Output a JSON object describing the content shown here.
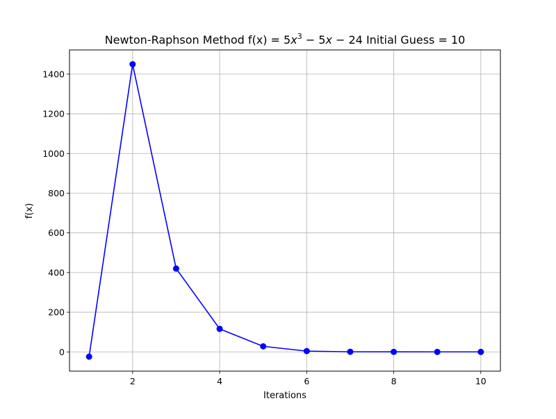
{
  "chart_data": {
    "type": "line",
    "title": "Newton-Raphson Method f(x) = 5x³ − 5x − 24 Initial Guess = 10",
    "title_parts": {
      "prefix": "Newton-Raphson Method f(x) = 5",
      "var": "x",
      "exponent": "3",
      "middle": " − 5",
      "var2": "x",
      "suffix": " − 24 Initial Guess = 10"
    },
    "xlabel": "Iterations",
    "ylabel": "f(x)",
    "xlim": [
      0.55,
      10.45
    ],
    "ylim": [
      -97,
      1522
    ],
    "xticks": [
      2,
      4,
      6,
      8,
      10
    ],
    "yticks": [
      0,
      200,
      400,
      600,
      800,
      1000,
      1200,
      1400
    ],
    "grid": true,
    "line_color": "#0000ff",
    "marker": "circle",
    "series": [
      {
        "x": [
          1,
          2,
          3,
          4,
          5,
          6,
          7,
          8,
          9,
          10
        ],
        "values": [
          -24,
          1450,
          420,
          116,
          28,
          4,
          0.5,
          0.1,
          0,
          0
        ]
      }
    ]
  }
}
